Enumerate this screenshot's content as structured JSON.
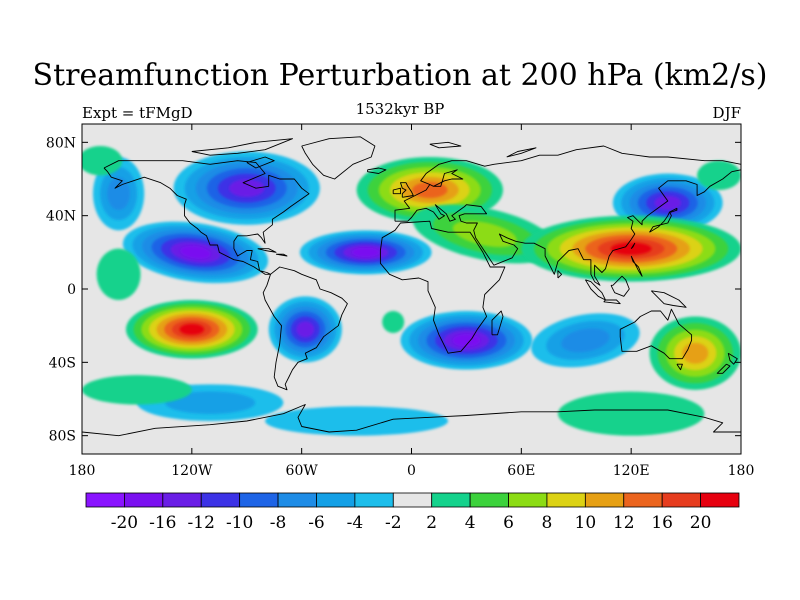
{
  "title": "Streamfunction Perturbation at 200 hPa (km2/s)",
  "left_label": "Expt = tFMgD",
  "center_label": "1532kyr BP",
  "right_label": "DJF",
  "map": {
    "type": "filled-contour-map",
    "projection": "cylindrical-equidistant",
    "lon_range": [
      -180,
      180
    ],
    "lat_range": [
      -90,
      90
    ],
    "lat_ticks": [
      {
        "value": 80,
        "label": "80N"
      },
      {
        "value": 40,
        "label": "40N"
      },
      {
        "value": 0,
        "label": "0"
      },
      {
        "value": -40,
        "label": "40S"
      },
      {
        "value": -80,
        "label": "80S"
      }
    ],
    "lon_ticks": [
      {
        "value": -180,
        "label": "180"
      },
      {
        "value": -120,
        "label": "120W"
      },
      {
        "value": -60,
        "label": "60W"
      },
      {
        "value": 0,
        "label": "0"
      },
      {
        "value": 60,
        "label": "60E"
      },
      {
        "value": 120,
        "label": "120E"
      },
      {
        "value": 180,
        "label": "180"
      }
    ],
    "background_color": "#e6e6e6",
    "coastline_color": "#000000"
  },
  "colorbar": {
    "labels": [
      "-20",
      "-16",
      "-12",
      "-10",
      "-8",
      "-6",
      "-4",
      "-2",
      "2",
      "4",
      "6",
      "8",
      "10",
      "12",
      "16",
      "20"
    ],
    "colors": [
      "#8a14ff",
      "#7a10f0",
      "#6a1ee6",
      "#3c32e6",
      "#1e64e6",
      "#1e8ce6",
      "#14a0e6",
      "#1ebeeb",
      "#e6e6e6",
      "#14d28c",
      "#3cd23c",
      "#8cdc14",
      "#dcd214",
      "#e6a014",
      "#eb641e",
      "#e63c1e",
      "#e6000f"
    ]
  }
}
